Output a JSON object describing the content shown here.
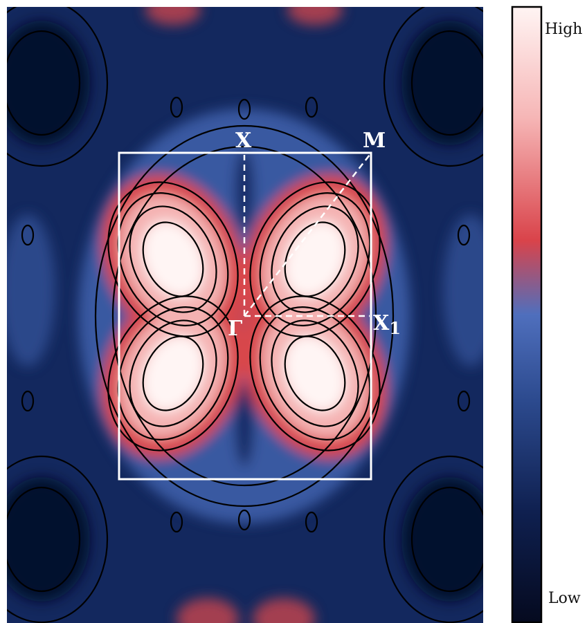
{
  "chart_data": {
    "type": "heatmap",
    "title": "",
    "xlabel": "",
    "ylabel": "",
    "colormap": [
      "#050a1f",
      "#0f2050",
      "#2c4a8e",
      "#4f6fbd",
      "#d9434a",
      "#f6b6b6",
      "#fff4f3"
    ],
    "colorbar": {
      "high_label": "High",
      "low_label": "Low"
    },
    "high_symmetry_points": [
      {
        "id": "X",
        "label": "X"
      },
      {
        "id": "M",
        "label": "M"
      },
      {
        "id": "Gamma",
        "label": "Γ"
      },
      {
        "id": "X1",
        "label": "X",
        "subscript": "1"
      }
    ],
    "path": [
      "X",
      "Gamma",
      "M",
      "Gamma",
      "X1"
    ],
    "lobes": 4,
    "contour_lines": true,
    "brillouin_zone_outline": "white"
  }
}
